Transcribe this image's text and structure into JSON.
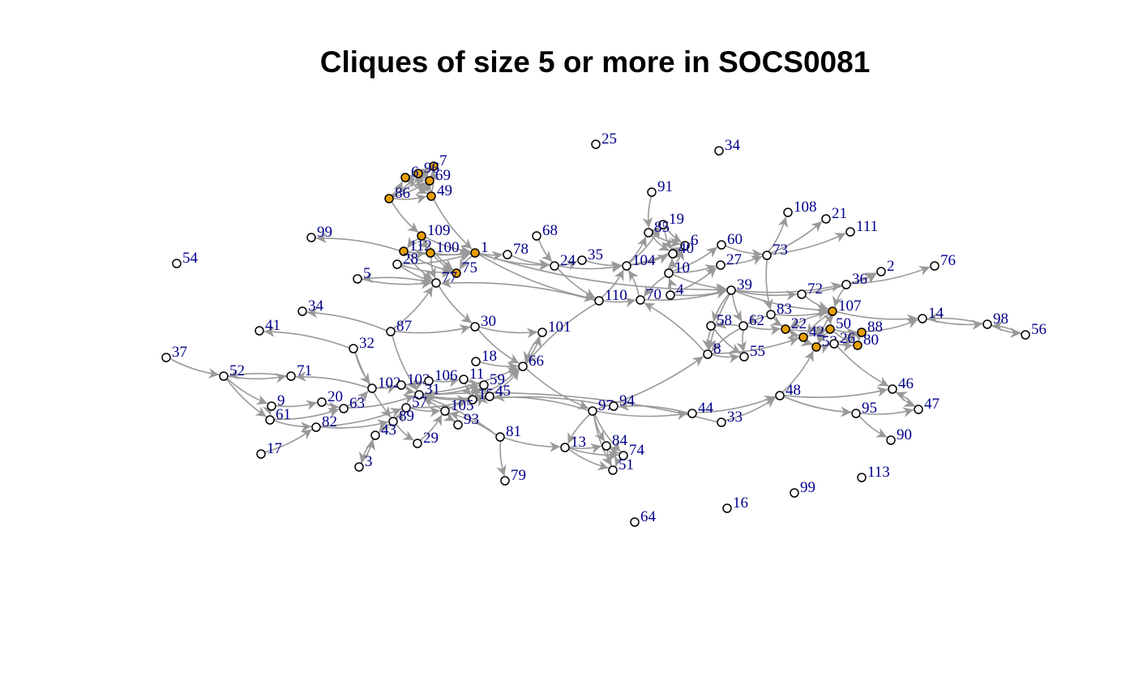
{
  "title": "Cliques of size 5 or more in SOCS0081",
  "colors": {
    "edge": "#999999",
    "node_default": "#ffffff",
    "node_clique": "#e69f00",
    "node_stroke": "#000000",
    "label": "#00008b"
  },
  "nodes": [
    {
      "id": "n25",
      "label": "25",
      "clique": false
    },
    {
      "id": "n34a",
      "label": "34",
      "clique": false
    },
    {
      "id": "n7",
      "label": "7",
      "clique": true
    },
    {
      "id": "n96",
      "label": "96",
      "clique": true
    },
    {
      "id": "n69",
      "label": "69",
      "clique": true
    },
    {
      "id": "n6x",
      "label": "6",
      "clique": true
    },
    {
      "id": "n86",
      "label": "86",
      "clique": true
    },
    {
      "id": "n49",
      "label": "49",
      "clique": true
    },
    {
      "id": "n91",
      "label": "91",
      "clique": false
    },
    {
      "id": "n108",
      "label": "108",
      "clique": false
    },
    {
      "id": "n21",
      "label": "21",
      "clique": false
    },
    {
      "id": "n111",
      "label": "111",
      "clique": false
    },
    {
      "id": "n19",
      "label": "19",
      "clique": false
    },
    {
      "id": "n85",
      "label": "85",
      "clique": false
    },
    {
      "id": "n6",
      "label": "6",
      "clique": false
    },
    {
      "id": "n40",
      "label": "40",
      "clique": false
    },
    {
      "id": "n60",
      "label": "60",
      "clique": false
    },
    {
      "id": "n68",
      "label": "68",
      "clique": false
    },
    {
      "id": "n109",
      "label": "109",
      "clique": true
    },
    {
      "id": "n99a",
      "label": "99",
      "clique": false
    },
    {
      "id": "n54",
      "label": "54",
      "clique": false
    },
    {
      "id": "n112",
      "label": "112",
      "clique": true
    },
    {
      "id": "n100",
      "label": "100",
      "clique": true
    },
    {
      "id": "n1",
      "label": "1",
      "clique": true
    },
    {
      "id": "n78",
      "label": "78",
      "clique": false
    },
    {
      "id": "n28",
      "label": "28",
      "clique": false
    },
    {
      "id": "n75",
      "label": "75",
      "clique": true
    },
    {
      "id": "n24",
      "label": "24",
      "clique": false
    },
    {
      "id": "n35",
      "label": "35",
      "clique": false
    },
    {
      "id": "n104",
      "label": "104",
      "clique": false
    },
    {
      "id": "n27",
      "label": "27",
      "clique": false
    },
    {
      "id": "n73",
      "label": "73",
      "clique": false
    },
    {
      "id": "n10",
      "label": "10",
      "clique": false
    },
    {
      "id": "n2",
      "label": "2",
      "clique": false
    },
    {
      "id": "n76",
      "label": "76",
      "clique": false
    },
    {
      "id": "n5",
      "label": "5",
      "clique": false
    },
    {
      "id": "n77",
      "label": "77",
      "clique": false
    },
    {
      "id": "n36",
      "label": "36",
      "clique": false
    },
    {
      "id": "n39",
      "label": "39",
      "clique": false
    },
    {
      "id": "n4",
      "label": "4",
      "clique": false
    },
    {
      "id": "n72",
      "label": "72",
      "clique": false
    },
    {
      "id": "n70",
      "label": "70",
      "clique": false
    },
    {
      "id": "n110",
      "label": "110",
      "clique": false
    },
    {
      "id": "n34b",
      "label": "34",
      "clique": false
    },
    {
      "id": "n107",
      "label": "107",
      "clique": true
    },
    {
      "id": "n83",
      "label": "83",
      "clique": false
    },
    {
      "id": "n14",
      "label": "14",
      "clique": false
    },
    {
      "id": "n98",
      "label": "98",
      "clique": false
    },
    {
      "id": "n56",
      "label": "56",
      "clique": false
    },
    {
      "id": "n41",
      "label": "41",
      "clique": false
    },
    {
      "id": "n87",
      "label": "87",
      "clique": false
    },
    {
      "id": "n30",
      "label": "30",
      "clique": false
    },
    {
      "id": "n58",
      "label": "58",
      "clique": false
    },
    {
      "id": "n62",
      "label": "62",
      "clique": false
    },
    {
      "id": "n22",
      "label": "22",
      "clique": true
    },
    {
      "id": "n42",
      "label": "42",
      "clique": true
    },
    {
      "id": "n50",
      "label": "50",
      "clique": true
    },
    {
      "id": "n88",
      "label": "88",
      "clique": true
    },
    {
      "id": "n101",
      "label": "101",
      "clique": false
    },
    {
      "id": "n53",
      "label": "53",
      "clique": true
    },
    {
      "id": "n26",
      "label": "26",
      "clique": false
    },
    {
      "id": "n80",
      "label": "80",
      "clique": true
    },
    {
      "id": "n37",
      "label": "37",
      "clique": false
    },
    {
      "id": "n32",
      "label": "32",
      "clique": false
    },
    {
      "id": "n8",
      "label": "8",
      "clique": false
    },
    {
      "id": "n55",
      "label": "55",
      "clique": false
    },
    {
      "id": "n18",
      "label": "18",
      "clique": false
    },
    {
      "id": "n66",
      "label": "66",
      "clique": false
    },
    {
      "id": "n52",
      "label": "52",
      "clique": false
    },
    {
      "id": "n71",
      "label": "71",
      "clique": false
    },
    {
      "id": "n102",
      "label": "102",
      "clique": false
    },
    {
      "id": "n103",
      "label": "103",
      "clique": false
    },
    {
      "id": "n106",
      "label": "106",
      "clique": false
    },
    {
      "id": "n11",
      "label": "11",
      "clique": false
    },
    {
      "id": "n59",
      "label": "59",
      "clique": false
    },
    {
      "id": "n31",
      "label": "31",
      "clique": false
    },
    {
      "id": "n15",
      "label": "15",
      "clique": false
    },
    {
      "id": "n45",
      "label": "45",
      "clique": false
    },
    {
      "id": "n46",
      "label": "46",
      "clique": false
    },
    {
      "id": "n9",
      "label": "9",
      "clique": false
    },
    {
      "id": "n20",
      "label": "20",
      "clique": false
    },
    {
      "id": "n63",
      "label": "63",
      "clique": false
    },
    {
      "id": "n57",
      "label": "57",
      "clique": false
    },
    {
      "id": "n105",
      "label": "105",
      "clique": false
    },
    {
      "id": "n97",
      "label": "97",
      "clique": false
    },
    {
      "id": "n94",
      "label": "94",
      "clique": false
    },
    {
      "id": "n44",
      "label": "44",
      "clique": false
    },
    {
      "id": "n48",
      "label": "48",
      "clique": false
    },
    {
      "id": "n95",
      "label": "95",
      "clique": false
    },
    {
      "id": "n47",
      "label": "47",
      "clique": false
    },
    {
      "id": "n61",
      "label": "61",
      "clique": false
    },
    {
      "id": "n89",
      "label": "89",
      "clique": false
    },
    {
      "id": "n93",
      "label": "93",
      "clique": false
    },
    {
      "id": "n82",
      "label": "82",
      "clique": false
    },
    {
      "id": "n33",
      "label": "33",
      "clique": false
    },
    {
      "id": "n43",
      "label": "43",
      "clique": false
    },
    {
      "id": "n81",
      "label": "81",
      "clique": false
    },
    {
      "id": "n29",
      "label": "29",
      "clique": false
    },
    {
      "id": "n90",
      "label": "90",
      "clique": false
    },
    {
      "id": "n13",
      "label": "13",
      "clique": false
    },
    {
      "id": "n84",
      "label": "84",
      "clique": false
    },
    {
      "id": "n74",
      "label": "74",
      "clique": false
    },
    {
      "id": "n17",
      "label": "17",
      "clique": false
    },
    {
      "id": "n3",
      "label": "3",
      "clique": false
    },
    {
      "id": "n51",
      "label": "51",
      "clique": false
    },
    {
      "id": "n79",
      "label": "79",
      "clique": false
    },
    {
      "id": "n113",
      "label": "113",
      "clique": false
    },
    {
      "id": "n99b",
      "label": "99",
      "clique": false
    },
    {
      "id": "n16",
      "label": "16",
      "clique": false
    },
    {
      "id": "n64",
      "label": "64",
      "clique": false
    }
  ],
  "edges": [
    [
      "n86",
      "n6x"
    ],
    [
      "n86",
      "n96"
    ],
    [
      "n86",
      "n69"
    ],
    [
      "n86",
      "n49"
    ],
    [
      "n86",
      "n7"
    ],
    [
      "n6x",
      "n96"
    ],
    [
      "n6x",
      "n69"
    ],
    [
      "n6x",
      "n49"
    ],
    [
      "n6x",
      "n7"
    ],
    [
      "n96",
      "n69"
    ],
    [
      "n96",
      "n49"
    ],
    [
      "n96",
      "n7"
    ],
    [
      "n69",
      "n49"
    ],
    [
      "n69",
      "n7"
    ],
    [
      "n49",
      "n7"
    ],
    [
      "n86",
      "n109"
    ],
    [
      "n49",
      "n1"
    ],
    [
      "n109",
      "n112"
    ],
    [
      "n109",
      "n100"
    ],
    [
      "n109",
      "n1"
    ],
    [
      "n109",
      "n75"
    ],
    [
      "n112",
      "n100"
    ],
    [
      "n112",
      "n1"
    ],
    [
      "n112",
      "n75"
    ],
    [
      "n100",
      "n1"
    ],
    [
      "n100",
      "n75"
    ],
    [
      "n1",
      "n75"
    ],
    [
      "n112",
      "n99a"
    ],
    [
      "n28",
      "n75"
    ],
    [
      "n28",
      "n1"
    ],
    [
      "n28",
      "n77"
    ],
    [
      "n112",
      "n77"
    ],
    [
      "n100",
      "n77"
    ],
    [
      "n5",
      "n77"
    ],
    [
      "n77",
      "n5"
    ],
    [
      "n1",
      "n78"
    ],
    [
      "n78",
      "n24"
    ],
    [
      "n1",
      "n24"
    ],
    [
      "n68",
      "n24"
    ],
    [
      "n24",
      "n35"
    ],
    [
      "n24",
      "n104"
    ],
    [
      "n35",
      "n104"
    ],
    [
      "n24",
      "n110"
    ],
    [
      "n1",
      "n110"
    ],
    [
      "n1",
      "n39"
    ],
    [
      "n104",
      "n85"
    ],
    [
      "n104",
      "n19"
    ],
    [
      "n104",
      "n40"
    ],
    [
      "n104",
      "n6"
    ],
    [
      "n85",
      "n19"
    ],
    [
      "n85",
      "n6"
    ],
    [
      "n85",
      "n40"
    ],
    [
      "n19",
      "n40"
    ],
    [
      "n19",
      "n6"
    ],
    [
      "n40",
      "n6"
    ],
    [
      "n91",
      "n85"
    ],
    [
      "n10",
      "n40"
    ],
    [
      "n10",
      "n6"
    ],
    [
      "n10",
      "n60"
    ],
    [
      "n10",
      "n27"
    ],
    [
      "n10",
      "n39"
    ],
    [
      "n10",
      "n70"
    ],
    [
      "n27",
      "n73"
    ],
    [
      "n60",
      "n73"
    ],
    [
      "n73",
      "n108"
    ],
    [
      "n73",
      "n111"
    ],
    [
      "n73",
      "n21"
    ],
    [
      "n73",
      "n83"
    ],
    [
      "n4",
      "n39"
    ],
    [
      "n4",
      "n10"
    ],
    [
      "n4",
      "n27"
    ],
    [
      "n70",
      "n39"
    ],
    [
      "n70",
      "n104"
    ],
    [
      "n110",
      "n70"
    ],
    [
      "n110",
      "n104"
    ],
    [
      "n110",
      "n66"
    ],
    [
      "n110",
      "n77"
    ],
    [
      "n39",
      "n72"
    ],
    [
      "n39",
      "n36"
    ],
    [
      "n39",
      "n107"
    ],
    [
      "n39",
      "n62"
    ],
    [
      "n39",
      "n58"
    ],
    [
      "n39",
      "n8"
    ],
    [
      "n72",
      "n2"
    ],
    [
      "n36",
      "n2"
    ],
    [
      "n36",
      "n76"
    ],
    [
      "n36",
      "n107"
    ],
    [
      "n72",
      "n107"
    ],
    [
      "n83",
      "n107"
    ],
    [
      "n83",
      "n22"
    ],
    [
      "n83",
      "n62"
    ],
    [
      "n107",
      "n42"
    ],
    [
      "n107",
      "n50"
    ],
    [
      "n107",
      "n22"
    ],
    [
      "n107",
      "n53"
    ],
    [
      "n107",
      "n14"
    ],
    [
      "n22",
      "n42"
    ],
    [
      "n22",
      "n50"
    ],
    [
      "n22",
      "n53"
    ],
    [
      "n42",
      "n50"
    ],
    [
      "n42",
      "n53"
    ],
    [
      "n50",
      "n53"
    ],
    [
      "n50",
      "n88"
    ],
    [
      "n53",
      "n88"
    ],
    [
      "n53",
      "n26"
    ],
    [
      "n26",
      "n80"
    ],
    [
      "n88",
      "n80"
    ],
    [
      "n50",
      "n80"
    ],
    [
      "n14",
      "n98"
    ],
    [
      "n98",
      "n14"
    ],
    [
      "n98",
      "n56"
    ],
    [
      "n56",
      "n98"
    ],
    [
      "n88",
      "n14"
    ],
    [
      "n62",
      "n58"
    ],
    [
      "n62",
      "n8"
    ],
    [
      "n62",
      "n55"
    ],
    [
      "n58",
      "n8"
    ],
    [
      "n58",
      "n55"
    ],
    [
      "n8",
      "n55"
    ],
    [
      "n62",
      "n22"
    ],
    [
      "n8",
      "n42"
    ],
    [
      "n8",
      "n70"
    ],
    [
      "n26",
      "n46"
    ],
    [
      "n46",
      "n47"
    ],
    [
      "n47",
      "n46"
    ],
    [
      "n48",
      "n46"
    ],
    [
      "n48",
      "n95"
    ],
    [
      "n95",
      "n47"
    ],
    [
      "n95",
      "n90"
    ],
    [
      "n48",
      "n53"
    ],
    [
      "n33",
      "n48"
    ],
    [
      "n44",
      "n48"
    ],
    [
      "n97",
      "n44"
    ],
    [
      "n44",
      "n94"
    ],
    [
      "n97",
      "n8"
    ],
    [
      "n97",
      "n84"
    ],
    [
      "n97",
      "n74"
    ],
    [
      "n97",
      "n51"
    ],
    [
      "n97",
      "n13"
    ],
    [
      "n13",
      "n84"
    ],
    [
      "n13",
      "n74"
    ],
    [
      "n13",
      "n51"
    ],
    [
      "n84",
      "n74"
    ],
    [
      "n84",
      "n51"
    ],
    [
      "n74",
      "n51"
    ],
    [
      "n66",
      "n97"
    ],
    [
      "n81",
      "n13"
    ],
    [
      "n81",
      "n79"
    ],
    [
      "n81",
      "n105"
    ],
    [
      "n77",
      "n30"
    ],
    [
      "n30",
      "n66"
    ],
    [
      "n30",
      "n101"
    ],
    [
      "n87",
      "n30"
    ],
    [
      "n87",
      "n34b"
    ],
    [
      "n87",
      "n77"
    ],
    [
      "n87",
      "n31"
    ],
    [
      "n32",
      "n41"
    ],
    [
      "n32",
      "n102"
    ],
    [
      "n37",
      "n52"
    ],
    [
      "n52",
      "n71"
    ],
    [
      "n71",
      "n52"
    ],
    [
      "n52",
      "n9"
    ],
    [
      "n52",
      "n61"
    ],
    [
      "n9",
      "n20"
    ],
    [
      "n9",
      "n61"
    ],
    [
      "n20",
      "n63"
    ],
    [
      "n61",
      "n82"
    ],
    [
      "n61",
      "n63"
    ],
    [
      "n82",
      "n57"
    ],
    [
      "n82",
      "n89"
    ],
    [
      "n63",
      "n102"
    ],
    [
      "n63",
      "n31"
    ],
    [
      "n102",
      "n103"
    ],
    [
      "n102",
      "n71"
    ],
    [
      "n103",
      "n31"
    ],
    [
      "n103",
      "n106"
    ],
    [
      "n106",
      "n11"
    ],
    [
      "n11",
      "n59"
    ],
    [
      "n11",
      "n15"
    ],
    [
      "n59",
      "n15"
    ],
    [
      "n59",
      "n45"
    ],
    [
      "n15",
      "n45"
    ],
    [
      "n31",
      "n59"
    ],
    [
      "n31",
      "n15"
    ],
    [
      "n31",
      "n45"
    ],
    [
      "n31",
      "n66"
    ],
    [
      "n18",
      "n66"
    ],
    [
      "n15",
      "n66"
    ],
    [
      "n45",
      "n66"
    ],
    [
      "n57",
      "n105"
    ],
    [
      "n57",
      "n15"
    ],
    [
      "n105",
      "n93"
    ],
    [
      "n105",
      "n59"
    ],
    [
      "n89",
      "n43"
    ],
    [
      "n43",
      "n3"
    ],
    [
      "n3",
      "n43"
    ],
    [
      "n89",
      "n29"
    ],
    [
      "n29",
      "n105"
    ],
    [
      "n17",
      "n82"
    ],
    [
      "n89",
      "n57"
    ],
    [
      "n32",
      "n89"
    ],
    [
      "n66",
      "n101"
    ],
    [
      "n97",
      "n45"
    ],
    [
      "n94",
      "n15"
    ],
    [
      "n93",
      "n31"
    ],
    [
      "n81",
      "n31"
    ],
    [
      "n101",
      "n66"
    ],
    [
      "n48",
      "n95"
    ],
    [
      "n33",
      "n31"
    ]
  ]
}
